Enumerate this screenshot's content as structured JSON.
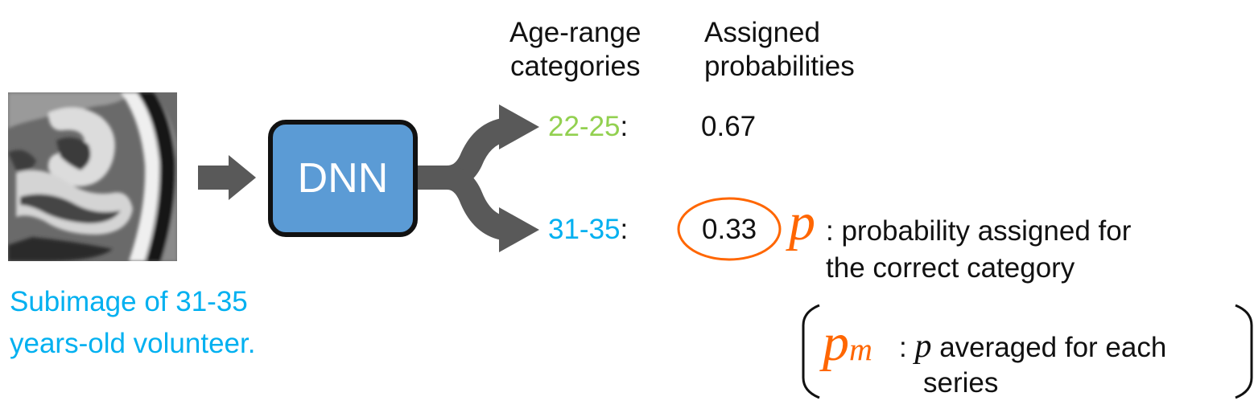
{
  "colors": {
    "green": "#92d050",
    "cyan": "#00b0f0",
    "orange": "#ff6600",
    "dnn_fill": "#5b9bd5",
    "arrow_gray": "#595959"
  },
  "image": {
    "name": "brain-mri-subimage"
  },
  "caption": "Subimage of 31-35\nyears-old volunteer.",
  "dnn": {
    "label": "DNN"
  },
  "headers": {
    "categories": "Age-range\ncategories",
    "probabilities": "Assigned\nprobabilities"
  },
  "rows": [
    {
      "category": "22-25",
      "colon": ":",
      "probability": "0.67"
    },
    {
      "category": "31-35",
      "colon": ":",
      "probability": "0.33"
    }
  ],
  "p_note": {
    "symbol": "p",
    "text": ": probability assigned for\nthe correct category"
  },
  "pm_note": {
    "symbol": "p",
    "subscript": "m",
    "colon": ":",
    "inline_symbol": "p",
    "text": " averaged for each",
    "text2": "series"
  }
}
